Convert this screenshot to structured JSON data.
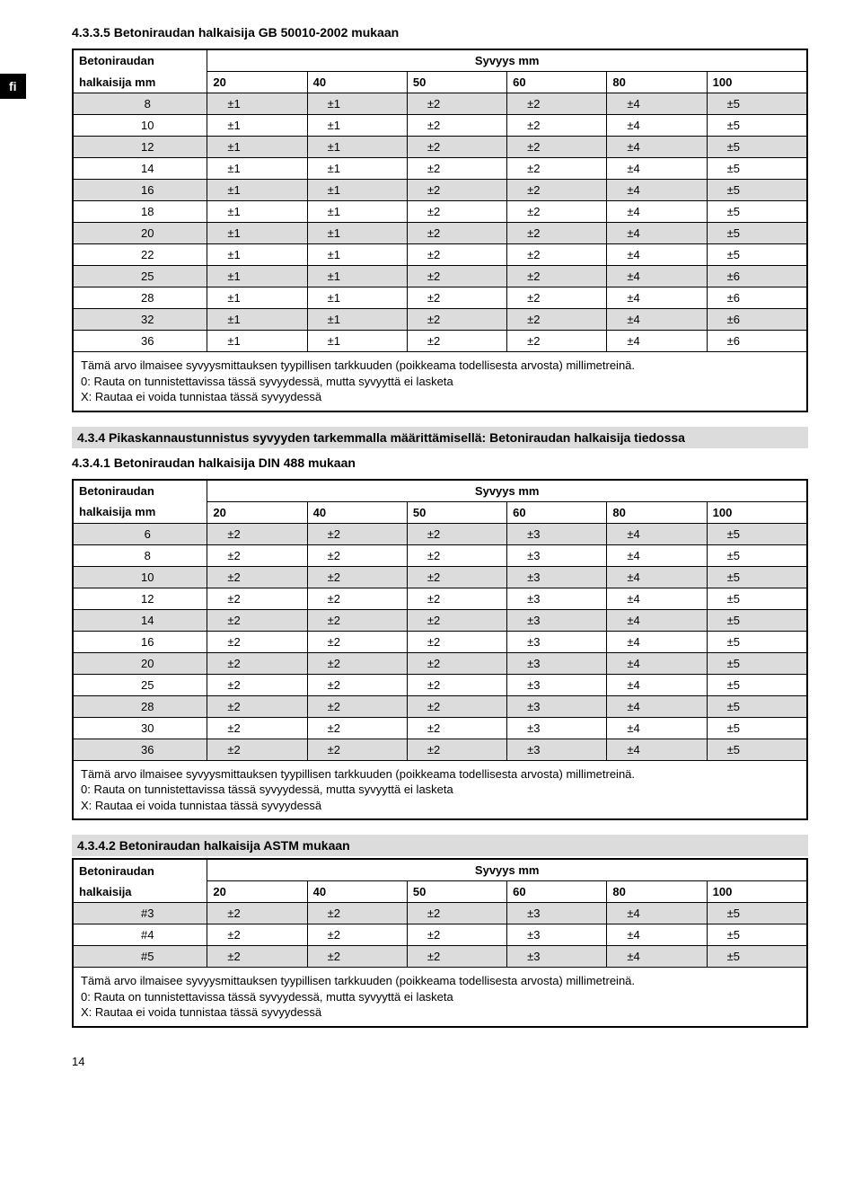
{
  "lang_tab": "fi",
  "page_number": "14",
  "sections": {
    "s1": {
      "heading": "4.3.3.5 Betoniraudan halkaisija GB 50010-2002 mukaan",
      "rowhead_top": "Betoniraudan",
      "rowhead_bottom": "halkaisija mm",
      "depth_title": "Syvyys mm",
      "depths": [
        "20",
        "40",
        "50",
        "60",
        "80",
        "100"
      ],
      "rows": [
        {
          "d": "8",
          "v": [
            "±1",
            "±1",
            "±2",
            "±2",
            "±4",
            "±5"
          ]
        },
        {
          "d": "10",
          "v": [
            "±1",
            "±1",
            "±2",
            "±2",
            "±4",
            "±5"
          ]
        },
        {
          "d": "12",
          "v": [
            "±1",
            "±1",
            "±2",
            "±2",
            "±4",
            "±5"
          ]
        },
        {
          "d": "14",
          "v": [
            "±1",
            "±1",
            "±2",
            "±2",
            "±4",
            "±5"
          ]
        },
        {
          "d": "16",
          "v": [
            "±1",
            "±1",
            "±2",
            "±2",
            "±4",
            "±5"
          ]
        },
        {
          "d": "18",
          "v": [
            "±1",
            "±1",
            "±2",
            "±2",
            "±4",
            "±5"
          ]
        },
        {
          "d": "20",
          "v": [
            "±1",
            "±1",
            "±2",
            "±2",
            "±4",
            "±5"
          ]
        },
        {
          "d": "22",
          "v": [
            "±1",
            "±1",
            "±2",
            "±2",
            "±4",
            "±5"
          ]
        },
        {
          "d": "25",
          "v": [
            "±1",
            "±1",
            "±2",
            "±2",
            "±4",
            "±6"
          ]
        },
        {
          "d": "28",
          "v": [
            "±1",
            "±1",
            "±2",
            "±2",
            "±4",
            "±6"
          ]
        },
        {
          "d": "32",
          "v": [
            "±1",
            "±1",
            "±2",
            "±2",
            "±4",
            "±6"
          ]
        },
        {
          "d": "36",
          "v": [
            "±1",
            "±1",
            "±2",
            "±2",
            "±4",
            "±6"
          ]
        }
      ],
      "note1": "Tämä arvo ilmaisee syvyysmittauksen tyypillisen tarkkuuden (poikkeama todellisesta arvosta) millimetreinä.",
      "note2": "0: Rauta on tunnistettavissa tässä syvyydessä, mutta syvyyttä ei lasketa",
      "note3": "X: Rautaa ei voida tunnistaa tässä syvyydessä"
    },
    "s2_intro": "4.3.4 Pikaskannaustunnistus syvyyden tarkemmalla määrittämisellä: Betoniraudan halkaisija tiedossa",
    "s2": {
      "heading": "4.3.4.1 Betoniraudan halkaisija DIN 488 mukaan",
      "rowhead_top": "Betoniraudan",
      "rowhead_bottom": "halkaisija mm",
      "depth_title": "Syvyys mm",
      "depths": [
        "20",
        "40",
        "50",
        "60",
        "80",
        "100"
      ],
      "rows": [
        {
          "d": "6",
          "v": [
            "±2",
            "±2",
            "±2",
            "±3",
            "±4",
            "±5"
          ]
        },
        {
          "d": "8",
          "v": [
            "±2",
            "±2",
            "±2",
            "±3",
            "±4",
            "±5"
          ]
        },
        {
          "d": "10",
          "v": [
            "±2",
            "±2",
            "±2",
            "±3",
            "±4",
            "±5"
          ]
        },
        {
          "d": "12",
          "v": [
            "±2",
            "±2",
            "±2",
            "±3",
            "±4",
            "±5"
          ]
        },
        {
          "d": "14",
          "v": [
            "±2",
            "±2",
            "±2",
            "±3",
            "±4",
            "±5"
          ]
        },
        {
          "d": "16",
          "v": [
            "±2",
            "±2",
            "±2",
            "±3",
            "±4",
            "±5"
          ]
        },
        {
          "d": "20",
          "v": [
            "±2",
            "±2",
            "±2",
            "±3",
            "±4",
            "±5"
          ]
        },
        {
          "d": "25",
          "v": [
            "±2",
            "±2",
            "±2",
            "±3",
            "±4",
            "±5"
          ]
        },
        {
          "d": "28",
          "v": [
            "±2",
            "±2",
            "±2",
            "±3",
            "±4",
            "±5"
          ]
        },
        {
          "d": "30",
          "v": [
            "±2",
            "±2",
            "±2",
            "±3",
            "±4",
            "±5"
          ]
        },
        {
          "d": "36",
          "v": [
            "±2",
            "±2",
            "±2",
            "±3",
            "±4",
            "±5"
          ]
        }
      ],
      "note1": "Tämä arvo ilmaisee syvyysmittauksen tyypillisen tarkkuuden (poikkeama todellisesta arvosta) millimetreinä.",
      "note2": "0: Rauta on tunnistettavissa tässä syvyydessä, mutta syvyyttä ei lasketa",
      "note3": "X: Rautaa ei voida tunnistaa tässä syvyydessä"
    },
    "s3": {
      "heading": "4.3.4.2 Betoniraudan halkaisija ASTM mukaan",
      "rowhead_top": "Betoniraudan",
      "rowhead_bottom": "halkaisija",
      "depth_title": "Syvyys mm",
      "depths": [
        "20",
        "40",
        "50",
        "60",
        "80",
        "100"
      ],
      "rows": [
        {
          "d": "#3",
          "v": [
            "±2",
            "±2",
            "±2",
            "±3",
            "±4",
            "±5"
          ]
        },
        {
          "d": "#4",
          "v": [
            "±2",
            "±2",
            "±2",
            "±3",
            "±4",
            "±5"
          ]
        },
        {
          "d": "#5",
          "v": [
            "±2",
            "±2",
            "±2",
            "±3",
            "±4",
            "±5"
          ]
        }
      ],
      "note1": "Tämä arvo ilmaisee syvyysmittauksen tyypillisen tarkkuuden (poikkeama todellisesta arvosta) millimetreinä.",
      "note2": "0: Rauta on tunnistettavissa tässä syvyydessä, mutta syvyyttä ei lasketa",
      "note3": "X: Rautaa ei voida tunnistaa tässä syvyydessä"
    }
  }
}
